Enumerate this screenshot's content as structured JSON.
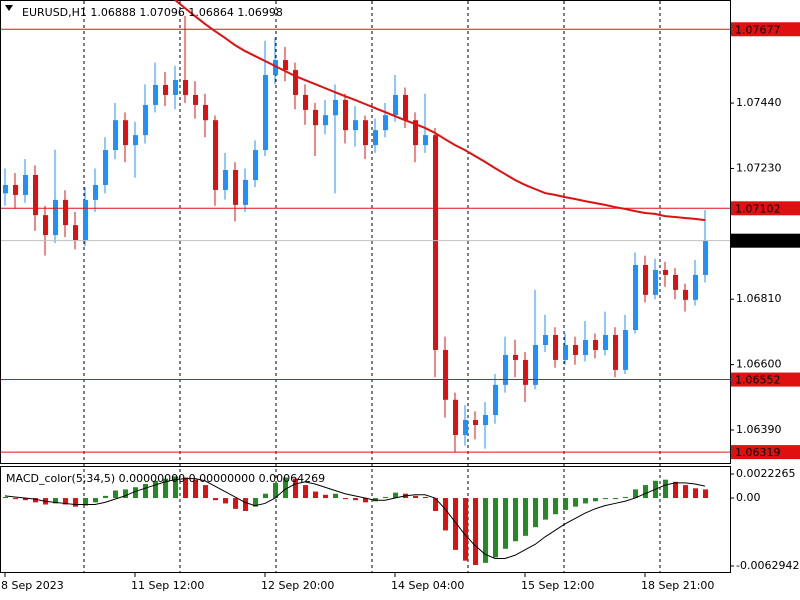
{
  "chart_data": {
    "type": "candlestick",
    "title": "EURUSD,H1  1.06888 1.07096 1.06864 1.06998",
    "categories": [
      "8 Sep 2023",
      null,
      null,
      null,
      null,
      null,
      null,
      null,
      null,
      null,
      null,
      null,
      null,
      "11 Sep 12:00",
      null,
      null,
      null,
      null,
      null,
      null,
      null,
      null,
      null,
      null,
      null,
      null,
      "12 Sep 20:00",
      null,
      null,
      null,
      null,
      null,
      null,
      null,
      null,
      null,
      null,
      null,
      null,
      "14 Sep 04:00",
      null,
      null,
      null,
      null,
      null,
      null,
      null,
      null,
      null,
      null,
      null,
      null,
      "15 Sep 12:00",
      null,
      null,
      null,
      null,
      null,
      null,
      null,
      null,
      null,
      null,
      null,
      "18 Sep 21:00",
      null,
      null,
      null,
      null,
      null,
      null
    ],
    "open": [
      1.0715,
      1.07177,
      1.07145,
      1.07209,
      1.0708,
      1.07016,
      1.07129,
      1.07048,
      1.07,
      1.07129,
      1.07177,
      1.07289,
      1.07385,
      1.07305,
      1.07337,
      1.07434,
      1.07498,
      1.07466,
      1.07514,
      1.07466,
      1.07434,
      1.07385,
      1.07161,
      1.07225,
      1.07113,
      1.07193,
      1.07289,
      1.0753,
      1.07578,
      1.07546,
      1.07466,
      1.07418,
      1.07369,
      1.07401,
      1.0745,
      1.07353,
      1.07385,
      1.07305,
      1.07353,
      1.07401,
      1.07466,
      1.07385,
      1.07305,
      1.07337,
      1.06647,
      1.06487,
      1.06374,
      1.06422,
      1.06406,
      1.06438,
      1.06535,
      1.06631,
      1.06615,
      1.06535,
      1.06663,
      1.06695,
      1.06615,
      1.06663,
      1.06631,
      1.06679,
      1.06647,
      1.06695,
      1.06583,
      1.06711,
      1.0692,
      1.06824,
      1.06904,
      1.06888,
      1.0684,
      1.06808,
      1.06888
    ],
    "high": [
      1.0723,
      1.07215,
      1.0726,
      1.0724,
      1.0711,
      1.0729,
      1.0716,
      1.0709,
      1.0717,
      1.0723,
      1.0733,
      1.0744,
      1.0741,
      1.0738,
      1.075,
      1.0757,
      1.0754,
      1.0756,
      1.0772,
      1.0751,
      1.0747,
      1.074,
      1.0728,
      1.0725,
      1.0723,
      1.0732,
      1.0764,
      1.0765,
      1.0762,
      1.0757,
      1.075,
      1.0744,
      1.0745,
      1.075,
      1.0747,
      1.0743,
      1.074,
      1.0739,
      1.0744,
      1.0753,
      1.0749,
      1.0741,
      1.0747,
      1.0736,
      1.0669,
      1.0651,
      1.0647,
      1.0645,
      1.0648,
      1.0657,
      1.0669,
      1.0668,
      1.0664,
      1.0684,
      1.0676,
      1.0672,
      1.067,
      1.0669,
      1.0674,
      1.067,
      1.0677,
      1.0672,
      1.0676,
      1.0696,
      1.0695,
      1.0694,
      1.0693,
      1.0691,
      1.0686,
      1.06936,
      1.07096
    ],
    "low": [
      1.0711,
      1.071,
      1.0712,
      1.0703,
      1.0695,
      1.0699,
      1.0701,
      1.0697,
      1.0698,
      1.0709,
      1.0715,
      1.0726,
      1.0725,
      1.072,
      1.0731,
      1.0741,
      1.0743,
      1.0742,
      1.0744,
      1.0739,
      1.0733,
      1.0711,
      1.0713,
      1.0706,
      1.0709,
      1.0717,
      1.0727,
      1.075,
      1.0751,
      1.0742,
      1.0737,
      1.0727,
      1.0734,
      1.0715,
      1.0731,
      1.073,
      1.0726,
      1.0728,
      1.0733,
      1.0738,
      1.0736,
      1.0725,
      1.0728,
      1.0656,
      1.0643,
      1.06319,
      1.0634,
      1.0636,
      1.0633,
      1.0641,
      1.0651,
      1.0656,
      1.0648,
      1.0652,
      1.0664,
      1.0659,
      1.066,
      1.066,
      1.0661,
      1.0662,
      1.0663,
      1.0656,
      1.0657,
      1.067,
      1.068,
      1.0681,
      1.0685,
      1.0681,
      1.0677,
      1.0679,
      1.06864
    ],
    "close": [
      1.07177,
      1.07145,
      1.07209,
      1.0708,
      1.07016,
      1.07129,
      1.07048,
      1.07,
      1.07129,
      1.07177,
      1.07289,
      1.07385,
      1.07305,
      1.07337,
      1.07434,
      1.07498,
      1.07466,
      1.07514,
      1.07466,
      1.07434,
      1.07385,
      1.07161,
      1.07225,
      1.07113,
      1.07193,
      1.07289,
      1.0753,
      1.07578,
      1.07546,
      1.07466,
      1.07418,
      1.07369,
      1.07401,
      1.0745,
      1.07353,
      1.07385,
      1.07305,
      1.07353,
      1.07401,
      1.07466,
      1.07385,
      1.07305,
      1.07337,
      1.06647,
      1.06487,
      1.06374,
      1.06422,
      1.06406,
      1.06438,
      1.06535,
      1.06631,
      1.06615,
      1.06535,
      1.06663,
      1.06695,
      1.06615,
      1.06663,
      1.06631,
      1.06679,
      1.06647,
      1.06695,
      1.06583,
      1.06711,
      1.0692,
      1.06824,
      1.06904,
      1.06888,
      1.0684,
      1.06808,
      1.06888,
      1.06998
    ],
    "up_color": "#1e90ff",
    "down_color": "#e01010",
    "ylim": [
      1.06284,
      1.07771
    ],
    "yticks": [
      {
        "value": 1.0744,
        "label": "1.07440"
      },
      {
        "value": 1.0723,
        "label": "1.07230"
      },
      {
        "value": 1.0681,
        "label": "1.06810"
      },
      {
        "value": 1.066,
        "label": "1.06600"
      },
      {
        "value": 1.0639,
        "label": "1.06390"
      }
    ],
    "ma": {
      "color": "#e01010",
      "values": [
        null,
        null,
        null,
        null,
        null,
        null,
        null,
        null,
        null,
        null,
        null,
        null,
        null,
        null,
        null,
        null,
        null,
        1.07771,
        1.07745,
        1.07719,
        1.07694,
        1.07671,
        1.07649,
        1.07626,
        1.07607,
        1.07591,
        1.07575,
        1.07559,
        1.07543,
        1.07527,
        1.07514,
        1.07501,
        1.07488,
        1.07475,
        1.07462,
        1.0745,
        1.07437,
        1.07424,
        1.07411,
        1.07398,
        1.07385,
        1.07373,
        1.0736,
        1.07344,
        1.07324,
        1.07305,
        1.07289,
        1.0727,
        1.07251,
        1.07231,
        1.07212,
        1.07193,
        1.07177,
        1.07164,
        1.07151,
        1.07145,
        1.07138,
        1.07132,
        1.07125,
        1.07119,
        1.07113,
        1.07106,
        1.071,
        1.07093,
        1.07087,
        1.07084,
        1.07077,
        1.07074,
        1.07071,
        1.07068,
        1.07064
      ]
    },
    "levels": [
      1.07677,
      1.07102,
      1.06552,
      1.06319
    ],
    "level_color": "#e01010",
    "bid": 1.06998,
    "bid_color": "#c0c0c0",
    "macd": {
      "title": "MACD_color(5,34,5) 0.00000000 0.00000000 0.00064269",
      "values": [
        0.0001,
        -0.0001,
        -0.0002,
        -0.0004,
        -0.0006,
        -0.0005,
        -0.0006,
        -0.0008,
        -0.0007,
        -0.0004,
        0.0002,
        0.0007,
        0.0008,
        0.001,
        0.0013,
        0.0016,
        0.0018,
        0.002,
        0.0019,
        0.0017,
        0.0012,
        -0.0002,
        -0.0005,
        -0.001,
        -0.0012,
        -0.0008,
        0.0004,
        0.0014,
        0.0019,
        0.0018,
        0.0012,
        0.0006,
        0.0003,
        0.0004,
        -0.0001,
        -0.0002,
        -0.0004,
        -0.0003,
        0.0001,
        0.0005,
        0.0004,
        0.0002,
        0.0001,
        -0.0012,
        -0.003,
        -0.0048,
        -0.0058,
        -0.0062,
        -0.006,
        -0.0055,
        -0.0047,
        -0.004,
        -0.0035,
        -0.0027,
        -0.002,
        -0.0015,
        -0.0011,
        -0.0008,
        -0.0005,
        -0.0003,
        -0.0001,
        -0.0001,
        0.0001,
        0.0008,
        0.0012,
        0.0016,
        0.0017,
        0.0015,
        0.0012,
        0.0009,
        0.0008
      ],
      "signal": [
        0.0002,
        0.0001,
        0,
        -0.0001,
        -0.0003,
        -0.0004,
        -0.0005,
        -0.0006,
        -0.0006,
        -0.0006,
        -0.0004,
        -0.0001,
        0.0002,
        0.0006,
        0.0009,
        0.0012,
        0.0015,
        0.0017,
        0.0018,
        0.0018,
        0.0016,
        0.0011,
        0.0006,
        0.0001,
        -0.0004,
        -0.0007,
        -0.0005,
        0,
        0.0008,
        0.0013,
        0.0015,
        0.0013,
        0.001,
        0.0007,
        0.0004,
        0.0002,
        0,
        -0.0002,
        -0.0002,
        0,
        0.0002,
        0.0003,
        0.0003,
        0,
        -0.001,
        -0.0022,
        -0.0034,
        -0.0044,
        -0.0052,
        -0.0056,
        -0.0056,
        -0.0053,
        -0.0048,
        -0.0043,
        -0.0036,
        -0.003,
        -0.0024,
        -0.0019,
        -0.0014,
        -0.001,
        -0.0007,
        -0.0005,
        -0.0003,
        0,
        0.0004,
        0.0008,
        0.0012,
        0.0014,
        0.0014,
        0.0013,
        0.0011
      ],
      "rise_color": "#228b22",
      "fall_color": "#e01010",
      "signal_color": "#000000",
      "y2lim": [
        -0.0062942,
        0.0022265
      ],
      "y2ticks": [
        0.0022265,
        {
          "value": 0,
          "label": "0.00"
        },
        -0.0062942
      ]
    }
  }
}
